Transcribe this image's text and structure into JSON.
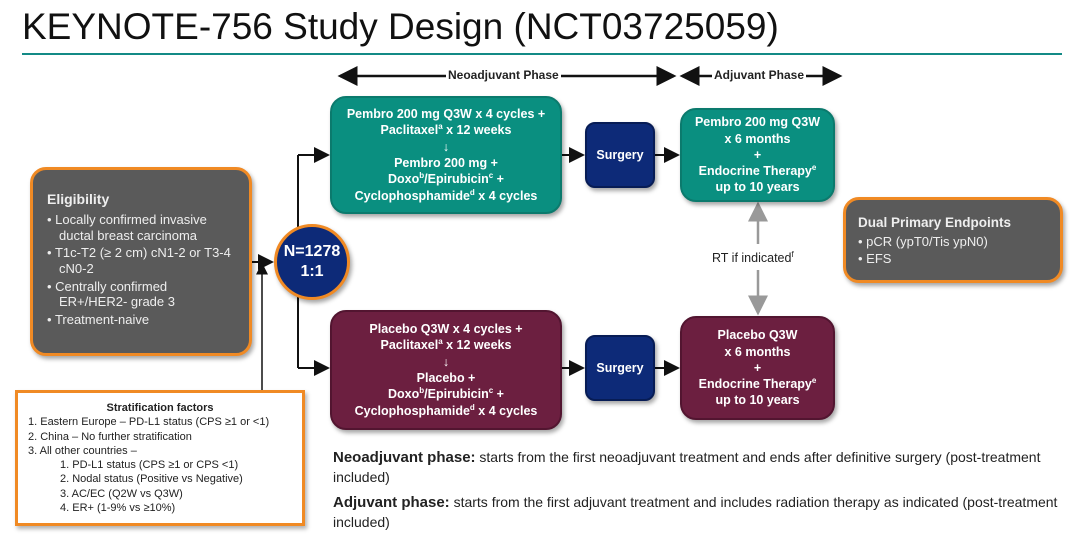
{
  "title": "KEYNOTE-756 Study Design (NCT03725059)",
  "phases": {
    "neoadjuvant": "Neoadjuvant Phase",
    "adjuvant": "Adjuvant Phase"
  },
  "eligibility": {
    "heading": "Eligibility",
    "items": [
      "Locally confirmed invasive ductal breast carcinoma",
      "T1c-T2 (≥ 2 cm) cN1-2 or T3-4 cN0-2",
      "Centrally confirmed ER+/HER2- grade 3",
      "Treatment-naive"
    ]
  },
  "randomization": {
    "n": "N=1278",
    "ratio": "1:1"
  },
  "pembro_arm": {
    "neo_line1": "Pembro 200 mg Q3W x 4 cycles +",
    "neo_line2a": "Paclitaxel",
    "neo_line2sup": "a",
    "neo_line2b": " x 12 weeks",
    "arrow": "↓",
    "neo_line3": "Pembro 200 mg +",
    "neo_line4a": "Doxo",
    "neo_line4sup1": "b",
    "neo_line4b": "/Epirubicin",
    "neo_line4sup2": "c",
    "neo_line4c": " +",
    "neo_line5a": "Cyclophosphamide",
    "neo_line5sup": "d",
    "neo_line5b": " x 4 cycles",
    "surgery": "Surgery",
    "adj_line1": "Pembro 200 mg Q3W",
    "adj_line2": "x 6 months",
    "adj_plus": "+",
    "adj_line3a": "Endocrine Therapy",
    "adj_line3sup": "e",
    "adj_line4": "up to 10 years"
  },
  "placebo_arm": {
    "neo_line1": "Placebo Q3W x 4 cycles +",
    "neo_line2a": "Paclitaxel",
    "neo_line2sup": "a",
    "neo_line2b": " x 12 weeks",
    "arrow": "↓",
    "neo_line3": "Placebo +",
    "neo_line4a": "Doxo",
    "neo_line4sup1": "b",
    "neo_line4b": "/Epirubicin",
    "neo_line4sup2": "c",
    "neo_line4c": " +",
    "neo_line5a": "Cyclophosphamide",
    "neo_line5sup": "d",
    "neo_line5b": " x 4 cycles",
    "surgery": "Surgery",
    "adj_line1": "Placebo Q3W",
    "adj_line2": "x 6 months",
    "adj_plus": "+",
    "adj_line3a": "Endocrine Therapy",
    "adj_line3sup": "e",
    "adj_line4": "up to 10 years"
  },
  "rt": {
    "label": "RT if indicated",
    "sup": "f"
  },
  "endpoints": {
    "heading": "Dual Primary Endpoints",
    "items": [
      "pCR (ypT0/Tis  ypN0)",
      "EFS"
    ]
  },
  "stratification": {
    "heading": "Stratification factors",
    "items": [
      "1.  Eastern Europe – PD-L1 status (CPS ≥1 or <1)",
      "2.  China – No further stratification",
      "3.  All other countries –"
    ],
    "subitems": [
      "1.  PD-L1 status (CPS ≥1 or CPS <1)",
      "2.  Nodal status (Positive vs Negative)",
      "3.  AC/EC (Q2W vs Q3W)",
      "4.  ER+ (1-9% vs ≥10%)"
    ]
  },
  "notes": [
    {
      "label": "Neoadjuvant phase:",
      "text": " starts from the first neoadjuvant treatment and ends after definitive surgery (post-treatment included)"
    },
    {
      "label": "Adjuvant phase:",
      "text": " starts from the first adjuvant treatment and includes radiation therapy as indicated (post-treatment included)"
    }
  ],
  "colors": {
    "teal": "#0a8f80",
    "navy": "#0d2a78",
    "maroon": "#6c1f40",
    "gray": "#5a5a5a",
    "orange": "#f08a24"
  }
}
